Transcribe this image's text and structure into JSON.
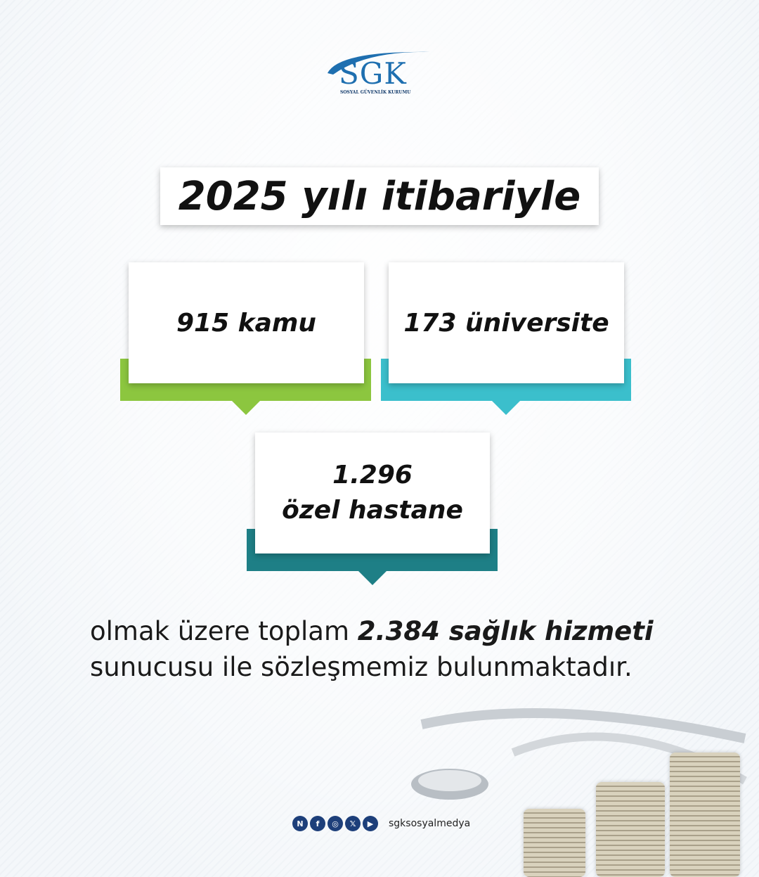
{
  "logo": {
    "letters": "SGK",
    "subtitle": "SOSYAL GÜVENLİK KURUMU"
  },
  "title": "2025 yılı itibariyle",
  "cards": [
    {
      "text": "915 kamu",
      "color": "#8cc63f"
    },
    {
      "text": "173 üniversite",
      "color": "#3bbfcc"
    },
    {
      "line1": "1.296",
      "line2": "özel hastane",
      "color": "#1e7f86"
    }
  ],
  "body": {
    "prefix": "olmak üzere toplam ",
    "bold": "2.384 sağlık hizmeti",
    "line2": "sunucusu ile sözleşmemiz bulunmaktadır."
  },
  "footer": {
    "icons": [
      "nsosyal-icon",
      "facebook-icon",
      "instagram-icon",
      "x-icon",
      "youtube-icon"
    ],
    "handle": "sgksosyalmedya"
  }
}
